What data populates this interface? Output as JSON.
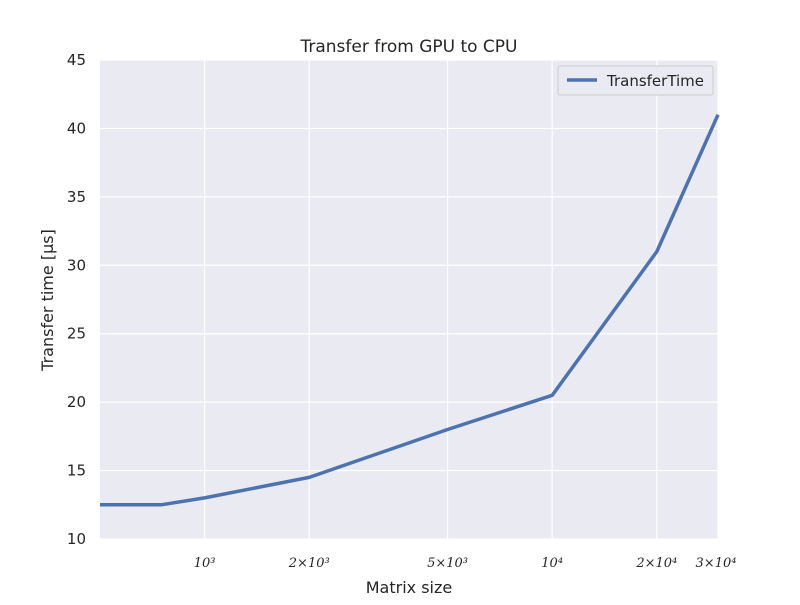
{
  "chart_data": {
    "type": "line",
    "title": "Transfer from GPU to CPU",
    "xlabel": "Matrix size",
    "ylabel": "Transfer time [μs]",
    "xscale": "log",
    "xlim": [
      500,
      30000
    ],
    "ylim": [
      10,
      45
    ],
    "grid": true,
    "legend": "top-right",
    "colors": {
      "background": "#eaeaf2",
      "grid": "#ffffff",
      "series": "#4c72b0"
    },
    "y_ticks": [
      {
        "value": 10,
        "label": "10"
      },
      {
        "value": 15,
        "label": "15"
      },
      {
        "value": 20,
        "label": "20"
      },
      {
        "value": 25,
        "label": "25"
      },
      {
        "value": 30,
        "label": "30"
      },
      {
        "value": 35,
        "label": "35"
      },
      {
        "value": 40,
        "label": "40"
      },
      {
        "value": 45,
        "label": "45"
      }
    ],
    "x_ticks": [
      {
        "value": 1000,
        "label": "10³"
      },
      {
        "value": 2000,
        "label": "2×10³"
      },
      {
        "value": 5000,
        "label": "5×10³"
      },
      {
        "value": 10000,
        "label": "10⁴"
      },
      {
        "value": 20000,
        "label": "2×10⁴"
      },
      {
        "value": 30000,
        "label": "3×10⁴"
      }
    ],
    "series": [
      {
        "name": "TransferTime",
        "x": [
          500,
          750,
          1000,
          2000,
          5000,
          10000,
          20000,
          30000
        ],
        "y": [
          12.5,
          12.5,
          13.0,
          14.5,
          18.0,
          20.5,
          31.0,
          41.0
        ]
      }
    ]
  }
}
